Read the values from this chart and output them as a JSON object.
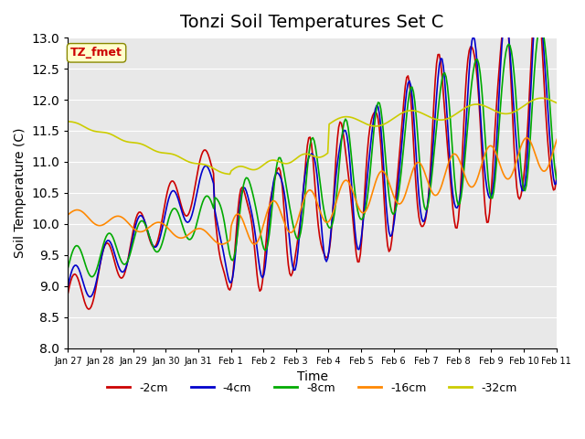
{
  "title": "Tonzi Soil Temperatures Set C",
  "xlabel": "Time",
  "ylabel": "Soil Temperature (C)",
  "ylim": [
    8.0,
    13.0
  ],
  "yticks": [
    8.0,
    8.5,
    9.0,
    9.5,
    10.0,
    10.5,
    11.0,
    11.5,
    12.0,
    12.5,
    13.0
  ],
  "xtick_labels": [
    "Jan 27",
    "Jan 28",
    "Jan 29",
    "Jan 30",
    "Jan 31",
    "Feb 1",
    "Feb 2",
    "Feb 3",
    "Feb 4",
    "Feb 5",
    "Feb 6",
    "Feb 7",
    "Feb 8",
    "Feb 9",
    "Feb 10",
    "Feb 11"
  ],
  "colors": {
    "-2cm": "#cc0000",
    "-4cm": "#0000cc",
    "-8cm": "#00aa00",
    "-16cm": "#ff8800",
    "-32cm": "#cccc00"
  },
  "legend_labels": [
    "-2cm",
    "-4cm",
    "-8cm",
    "-16cm",
    "-32cm"
  ],
  "annotation_text": "TZ_fmet",
  "annotation_color": "#cc0000",
  "annotation_bg": "#ffffcc",
  "bg_color": "#e8e8e8",
  "title_fontsize": 14,
  "label_fontsize": 10
}
